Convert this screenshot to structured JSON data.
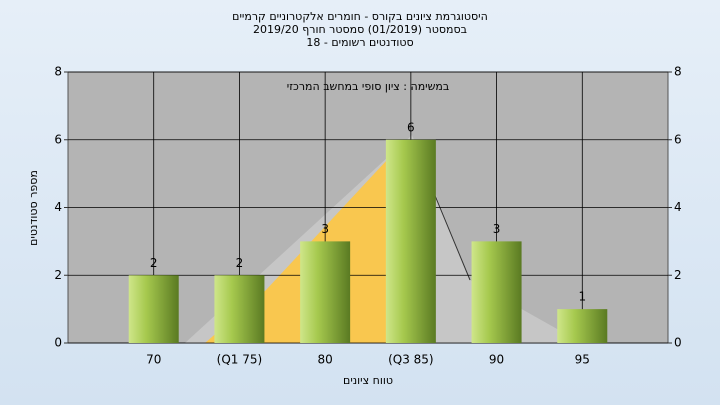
{
  "chart_data": {
    "type": "bar",
    "title": "היסטוגרמת ציונים בקורס - חומרים אלקטרוניים קרמיים",
    "subtitle": "בסמסטר  (01/2019)  סמסטר חורף 2019/20",
    "subtitle2": "סטודנטים רשומים - 18",
    "annotation": "במשימה : ציון סופי במחשב המרכזי",
    "x_label": "טווח ציונים",
    "y_label": "מספר סטודנטים",
    "categories": [
      "70",
      "(Q1 75)",
      "80",
      "(Q3 85)",
      "90",
      "95"
    ],
    "values": [
      2,
      2,
      3,
      6,
      3,
      1
    ],
    "ylim": [
      0,
      8
    ],
    "yticks": [
      0,
      2,
      4,
      6,
      8
    ],
    "y2lim": [
      0,
      8
    ],
    "y2ticks": [
      0,
      2,
      4,
      6,
      8
    ],
    "grid": true
  }
}
